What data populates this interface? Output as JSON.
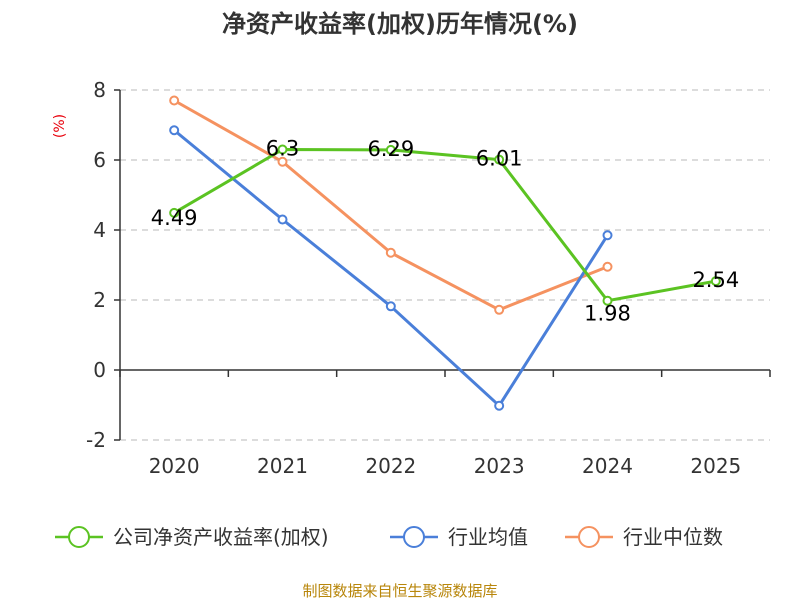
{
  "chart_data": {
    "type": "line",
    "title": "净资产收益率(加权)历年情况(%)",
    "ylabel": "(%)",
    "xlabel": "",
    "categories": [
      "2020",
      "2021",
      "2022",
      "2023",
      "2024",
      "2025"
    ],
    "ylim": [
      -2,
      8
    ],
    "yticks": [
      -2,
      0,
      2,
      4,
      6,
      8
    ],
    "grid": true,
    "legend_position": "bottom",
    "series": [
      {
        "name": "公司净资产收益率(加权)",
        "color": "#5bc322",
        "values": [
          4.49,
          6.3,
          6.29,
          6.01,
          1.98,
          2.54
        ],
        "labels": [
          "4.49",
          "6.3",
          "6.29",
          "6.01",
          "1.98",
          "2.54"
        ]
      },
      {
        "name": "行业均值",
        "color": "#4a7fd9",
        "values": [
          6.85,
          4.3,
          1.82,
          -1.02,
          3.85,
          null
        ]
      },
      {
        "name": "行业中位数",
        "color": "#f59260",
        "values": [
          7.7,
          5.95,
          3.35,
          1.72,
          2.95,
          null
        ]
      }
    ],
    "source": "制图数据来自恒生聚源数据库"
  }
}
